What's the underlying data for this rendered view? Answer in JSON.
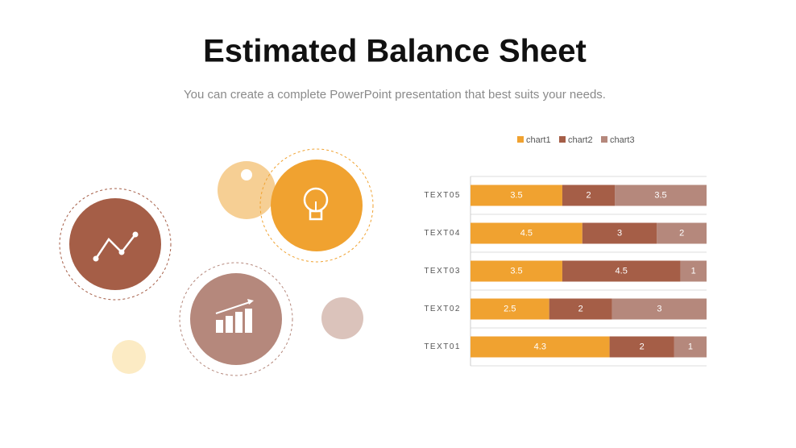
{
  "chart_data": {
    "type": "bar",
    "orientation": "horizontal",
    "stacking": "percent",
    "title": "Estimated Balance Sheet",
    "subtitle": "You can create a complete PowerPoint presentation that best suits your needs.",
    "categories": [
      "TEXT05",
      "TEXT04",
      "TEXT03",
      "TEXT02",
      "TEXT01"
    ],
    "series": [
      {
        "name": "chart1",
        "color": "#f0a230",
        "values": [
          3.5,
          4.5,
          3.5,
          2.5,
          4.3
        ]
      },
      {
        "name": "chart2",
        "color": "#a55e47",
        "values": [
          2,
          3,
          4.5,
          2,
          2
        ]
      },
      {
        "name": "chart3",
        "color": "#b5887c",
        "values": [
          3.5,
          2,
          1,
          3,
          1
        ]
      }
    ],
    "legend": "top",
    "grid": true
  }
}
